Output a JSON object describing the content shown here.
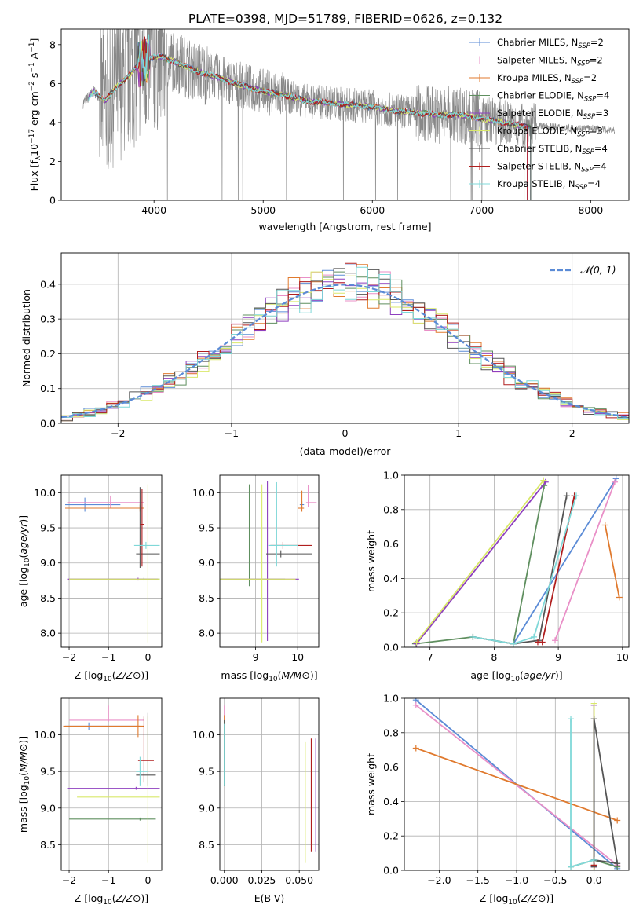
{
  "title": "PLATE=0398, MJD=51789, FIBERID=0626, z=0.132",
  "colors": {
    "Chabrier MILES": "#5b8bd6",
    "Salpeter MILES": "#e98fc7",
    "Kroupa MILES": "#e07a2e",
    "Chabrier ELODIE": "#5f8f5f",
    "Salpeter ELODIE": "#8e3fbf",
    "Kroupa ELODIE": "#d9e86a",
    "Chabrier STELIB": "#555555",
    "Salpeter STELIB": "#b01e1e",
    "Kroupa STELIB": "#7fd8d8",
    "data": "#888888",
    "normal": "#5b8bd6"
  },
  "legend_entries": [
    {
      "label": "Chabrier MILES, N",
      "sub": "SSP",
      "suffix": "=2"
    },
    {
      "label": "Salpeter MILES, N",
      "sub": "SSP",
      "suffix": "=2"
    },
    {
      "label": "Kroupa MILES, N",
      "sub": "SSP",
      "suffix": "=2"
    },
    {
      "label": "Chabrier ELODIE, N",
      "sub": "SSP",
      "suffix": "=4"
    },
    {
      "label": "Salpeter ELODIE, N",
      "sub": "SSP",
      "suffix": "=3"
    },
    {
      "label": "Kroupa ELODIE, N",
      "sub": "SSP",
      "suffix": "=3"
    },
    {
      "label": "Chabrier STELIB, N",
      "sub": "SSP",
      "suffix": "=4"
    },
    {
      "label": "Salpeter STELIB, N",
      "sub": "SSP",
      "suffix": "=4"
    },
    {
      "label": "Kroupa STELIB, N",
      "sub": "SSP",
      "suffix": "=4"
    }
  ],
  "chart_data": [
    {
      "id": "spectrum",
      "type": "line",
      "xlabel": "wavelength [Angstrom, rest frame]",
      "ylabel": "Flux [f_λ 10^-17 erg cm^-2 s^-1 A^-1]",
      "xlim": [
        3150,
        8350
      ],
      "ylim": [
        0,
        8.8
      ],
      "xticks": [
        4000,
        5000,
        6000,
        7000,
        8000
      ],
      "yticks": [
        0,
        2,
        4,
        6,
        8
      ],
      "continuum_x": [
        3350,
        3450,
        3550,
        3650,
        3750,
        3850,
        3950,
        4050,
        4200,
        4400,
        4600,
        4800,
        5000,
        5200,
        5400,
        5600,
        5800,
        6000,
        6200,
        6400,
        6600,
        6800,
        7000,
        7200,
        7400,
        7600,
        7800,
        8000,
        8200
      ],
      "continuum_y": [
        5.0,
        5.6,
        5.1,
        5.8,
        6.3,
        6.9,
        7.3,
        7.4,
        7.1,
        6.6,
        6.3,
        5.9,
        5.6,
        5.4,
        5.1,
        5.0,
        4.9,
        4.8,
        4.6,
        4.5,
        4.4,
        4.4,
        4.2,
        4.0,
        3.8,
        3.8,
        3.7,
        3.7,
        3.6
      ]
    },
    {
      "id": "residuals",
      "type": "histogram",
      "xlabel": "(data-model)/error",
      "ylabel": "Normed distribution",
      "xlim": [
        -2.5,
        2.5
      ],
      "ylim": [
        0,
        0.49
      ],
      "xticks": [
        -2,
        -1,
        0,
        1,
        2
      ],
      "yticks": [
        0.0,
        0.1,
        0.2,
        0.3,
        0.4
      ],
      "normal_label": "𝒩(0, 1)"
    },
    {
      "id": "age-vs-Z",
      "type": "errorbar",
      "xlabel": "Z [log10(Z/Z⊙)]",
      "ylabel": "age  [log10(age/yr)]",
      "xlim": [
        -2.2,
        0.35
      ],
      "ylim": [
        7.8,
        10.25
      ],
      "xticks": [
        -2,
        -1,
        0
      ],
      "yticks": [
        8.0,
        8.5,
        9.0,
        9.5,
        10.0
      ],
      "points": [
        {
          "model": "Chabrier MILES",
          "x": -1.6,
          "y": 9.83,
          "xerr": [
            0.5,
            0.9
          ],
          "yerr": [
            0.1,
            0.1
          ]
        },
        {
          "model": "Salpeter MILES",
          "x": -0.95,
          "y": 9.86,
          "xerr": [
            1.1,
            0.85
          ],
          "yerr": [
            0.08,
            0.1
          ]
        },
        {
          "model": "Kroupa MILES",
          "x": -0.2,
          "y": 9.78,
          "xerr": [
            1.9,
            0.1
          ],
          "yerr": [
            0.05,
            0.05
          ]
        },
        {
          "model": "Chabrier ELODIE",
          "x": -0.1,
          "y": 8.77,
          "xerr": [
            1.9,
            0.4
          ],
          "yerr": [
            0.02,
            0.02
          ]
        },
        {
          "model": "Salpeter ELODIE",
          "x": -0.25,
          "y": 8.77,
          "xerr": [
            1.8,
            0.5
          ],
          "yerr": [
            0.02,
            0.02
          ]
        },
        {
          "model": "Kroupa ELODIE",
          "x": 0.0,
          "y": 8.77,
          "xerr": [
            2.0,
            0.3
          ],
          "yerr": [
            0.9,
            1.35
          ]
        },
        {
          "model": "Chabrier STELIB",
          "x": -0.2,
          "y": 9.13,
          "xerr": [
            0.1,
            0.5
          ],
          "yerr": [
            0.2,
            0.95
          ]
        },
        {
          "model": "Salpeter STELIB",
          "x": -0.15,
          "y": 9.55,
          "xerr": [
            0.05,
            0.05
          ],
          "yerr": [
            0.6,
            0.5
          ]
        },
        {
          "model": "Kroupa STELIB",
          "x": -0.05,
          "y": 9.25,
          "xerr": [
            0.3,
            0.35
          ],
          "yerr": [
            0.05,
            0.05
          ]
        }
      ]
    },
    {
      "id": "age-vs-mass",
      "type": "errorbar",
      "xlabel": "mass [log10(M/M⊙)]",
      "ylabel": "",
      "xlim": [
        8.15,
        10.5
      ],
      "ylim": [
        7.8,
        10.25
      ],
      "xticks": [
        9,
        10
      ],
      "yticks": [
        8.0,
        8.5,
        9.0,
        9.5,
        10.0
      ],
      "points": [
        {
          "model": "Chabrier MILES",
          "x": 10.1,
          "y": 9.83,
          "xerr": [
            0.05,
            0.05
          ],
          "yerr": [
            0.05,
            0.05
          ]
        },
        {
          "model": "Salpeter MILES",
          "x": 10.25,
          "y": 9.86,
          "xerr": [
            0.05,
            0.2
          ],
          "yerr": [
            0.06,
            0.25
          ]
        },
        {
          "model": "Kroupa MILES",
          "x": 10.1,
          "y": 9.78,
          "xerr": [
            0.1,
            0.05
          ],
          "yerr": [
            0.05,
            0.25
          ]
        },
        {
          "model": "Chabrier ELODIE",
          "x": 8.85,
          "y": 8.77,
          "xerr": [
            0.7,
            0.85
          ],
          "yerr": [
            0.1,
            1.35
          ]
        },
        {
          "model": "Salpeter ELODIE",
          "x": 9.28,
          "y": 8.77,
          "xerr": [
            1.1,
            0.75
          ],
          "yerr": [
            0.88,
            1.4
          ]
        },
        {
          "model": "Kroupa ELODIE",
          "x": 9.15,
          "y": 8.77,
          "xerr": [
            1.0,
            0.8
          ],
          "yerr": [
            0.9,
            1.35
          ]
        },
        {
          "model": "Chabrier STELIB",
          "x": 9.6,
          "y": 9.13,
          "xerr": [
            0.35,
            0.75
          ],
          "yerr": [
            0.05,
            0.05
          ]
        },
        {
          "model": "Salpeter STELIB",
          "x": 9.65,
          "y": 9.25,
          "xerr": [
            0.3,
            0.7
          ],
          "yerr": [
            0.05,
            0.05
          ]
        },
        {
          "model": "Kroupa STELIB",
          "x": 9.5,
          "y": 9.25,
          "xerr": [
            0.2,
            0.5
          ],
          "yerr": [
            0.3,
            0.9
          ]
        }
      ]
    },
    {
      "id": "weight-vs-age",
      "type": "line",
      "xlabel": "age  [log10(age/yr)]",
      "ylabel": "mass weight",
      "xlim": [
        6.6,
        10.1
      ],
      "ylim": [
        0,
        1.0
      ],
      "xticks": [
        7,
        8,
        9,
        10
      ],
      "yticks": [
        0.0,
        0.2,
        0.4,
        0.6,
        0.8,
        1.0
      ],
      "series": [
        {
          "model": "Chabrier MILES",
          "x": [
            8.3,
            9.9
          ],
          "y": [
            0.02,
            0.98
          ]
        },
        {
          "model": "Salpeter MILES",
          "x": [
            8.95,
            9.88
          ],
          "y": [
            0.04,
            0.96
          ]
        },
        {
          "model": "Kroupa MILES",
          "x": [
            9.73,
            9.95
          ],
          "y": [
            0.71,
            0.29
          ]
        },
        {
          "model": "Chabrier ELODIE",
          "x": [
            6.77,
            7.67,
            8.3,
            8.78
          ],
          "y": [
            0.02,
            0.06,
            0.02,
            0.94
          ]
        },
        {
          "model": "Salpeter ELODIE",
          "x": [
            6.79,
            8.8
          ],
          "y": [
            0.02,
            0.96
          ]
        },
        {
          "model": "Kroupa ELODIE",
          "x": [
            6.79,
            8.77
          ],
          "y": [
            0.03,
            0.97
          ]
        },
        {
          "model": "Chabrier STELIB",
          "x": [
            7.67,
            8.3,
            8.7,
            9.13
          ],
          "y": [
            0.06,
            0.02,
            0.04,
            0.88
          ]
        },
        {
          "model": "Salpeter STELIB",
          "x": [
            8.68,
            8.75,
            9.25
          ],
          "y": [
            0.03,
            0.03,
            0.88
          ]
        },
        {
          "model": "Kroupa STELIB",
          "x": [
            7.67,
            8.3,
            8.62,
            9.28
          ],
          "y": [
            0.06,
            0.02,
            0.06,
            0.88
          ]
        }
      ]
    },
    {
      "id": "mass-vs-Z",
      "type": "errorbar",
      "xlabel": "Z [log10(Z/Z⊙)]",
      "ylabel": "mass [log10(M/M⊙)]",
      "xlim": [
        -2.2,
        0.35
      ],
      "ylim": [
        8.15,
        10.5
      ],
      "xticks": [
        -2,
        -1,
        0
      ],
      "yticks": [
        8.5,
        9.0,
        9.5,
        10.0
      ],
      "points": [
        {
          "model": "Chabrier MILES",
          "x": -1.5,
          "y": 10.12,
          "xerr": [
            0.6,
            1.3
          ],
          "yerr": [
            0.05,
            0.05
          ]
        },
        {
          "model": "Salpeter MILES",
          "x": -1.0,
          "y": 10.2,
          "xerr": [
            1.0,
            0.9
          ],
          "yerr": [
            0.02,
            0.2
          ]
        },
        {
          "model": "Kroupa MILES",
          "x": -0.25,
          "y": 10.12,
          "xerr": [
            1.9,
            0.15
          ],
          "yerr": [
            0.15,
            0.15
          ]
        },
        {
          "model": "Chabrier ELODIE",
          "x": -0.2,
          "y": 8.85,
          "xerr": [
            1.8,
            0.4
          ],
          "yerr": [
            0.02,
            0.02
          ]
        },
        {
          "model": "Salpeter ELODIE",
          "x": -0.3,
          "y": 9.27,
          "xerr": [
            1.75,
            0.6
          ],
          "yerr": [
            0.02,
            0.02
          ]
        },
        {
          "model": "Kroupa ELODIE",
          "x": 0.0,
          "y": 9.15,
          "xerr": [
            1.8,
            0.3
          ],
          "yerr": [
            0.9,
            1.1
          ]
        },
        {
          "model": "Chabrier STELIB",
          "x": 0.0,
          "y": 9.45,
          "xerr": [
            0.3,
            0.2
          ],
          "yerr": [
            0.15,
            0.85
          ]
        },
        {
          "model": "Salpeter STELIB",
          "x": -0.1,
          "y": 9.65,
          "xerr": [
            0.15,
            0.25
          ],
          "yerr": [
            0.3,
            0.6
          ]
        },
        {
          "model": "Kroupa STELIB",
          "x": -0.2,
          "y": 9.5,
          "xerr": [
            0.1,
            0.2
          ],
          "yerr": [
            0.2,
            0.2
          ]
        }
      ]
    },
    {
      "id": "mass-vs-ebv",
      "type": "errorbar",
      "xlabel": "E(B-V)",
      "ylabel": "",
      "xlim": [
        -0.003,
        0.063
      ],
      "ylim": [
        8.15,
        10.5
      ],
      "xticks": [
        0.0,
        0.025,
        0.05
      ],
      "xticklabels": [
        "0.000",
        "0.025",
        "0.050"
      ],
      "yticks": [
        8.5,
        9.0,
        9.5,
        10.0
      ],
      "points": [
        {
          "model": "Chabrier MILES",
          "x": 0.0,
          "y": 10.12,
          "xerr": [
            0,
            0
          ],
          "yerr": [
            0.05,
            0.05
          ]
        },
        {
          "model": "Salpeter MILES",
          "x": 0.0,
          "y": 10.2,
          "xerr": [
            0,
            0
          ],
          "yerr": [
            0.02,
            0.2
          ]
        },
        {
          "model": "Kroupa MILES",
          "x": 0.0,
          "y": 10.12,
          "xerr": [
            0,
            0
          ],
          "yerr": [
            0.15,
            0.15
          ]
        },
        {
          "model": "Chabrier ELODIE",
          "x": 0.0,
          "y": 9.7,
          "xerr": [
            0,
            0
          ],
          "yerr": [
            0.4,
            0.5
          ]
        },
        {
          "model": "Salpeter ELODIE",
          "x": 0.061,
          "y": 9.2,
          "xerr": [
            0,
            0
          ],
          "yerr": [
            0.8,
            0.75
          ]
        },
        {
          "model": "Kroupa ELODIE",
          "x": 0.054,
          "y": 9.15,
          "xerr": [
            0,
            0
          ],
          "yerr": [
            0.9,
            0.75
          ]
        },
        {
          "model": "Chabrier STELIB",
          "x": 0.0,
          "y": 9.7,
          "xerr": [
            0,
            0
          ],
          "yerr": [
            0.4,
            0.5
          ]
        },
        {
          "model": "Salpeter STELIB",
          "x": 0.058,
          "y": 9.2,
          "xerr": [
            0,
            0
          ],
          "yerr": [
            0.8,
            0.75
          ]
        },
        {
          "model": "Kroupa STELIB",
          "x": 0.0,
          "y": 9.7,
          "xerr": [
            0,
            0
          ],
          "yerr": [
            0.4,
            0.45
          ]
        }
      ]
    },
    {
      "id": "weight-vs-Z",
      "type": "line",
      "xlabel": "Z [log10(Z/Z⊙)]",
      "ylabel": "mass weight",
      "xlim": [
        -2.45,
        0.45
      ],
      "ylim": [
        0,
        1.0
      ],
      "xticks": [
        -2.0,
        -1.5,
        -1.0,
        -0.5,
        0.0
      ],
      "yticks": [
        0.0,
        0.2,
        0.4,
        0.6,
        0.8,
        1.0
      ],
      "series": [
        {
          "model": "Chabrier MILES",
          "x": [
            -2.3,
            0.3
          ],
          "y": [
            0.99,
            0.01
          ]
        },
        {
          "model": "Salpeter MILES",
          "x": [
            -2.3,
            0.3
          ],
          "y": [
            0.96,
            0.03
          ]
        },
        {
          "model": "Kroupa MILES",
          "x": [
            -2.3,
            0.3
          ],
          "y": [
            0.71,
            0.29
          ]
        },
        {
          "model": "Chabrier ELODIE",
          "x": [
            -0.3,
            0.0,
            0.3
          ],
          "y": [
            0.02,
            0.06,
            0.02
          ]
        },
        {
          "model": "Salpeter ELODIE",
          "x": [
            0.0,
            0.0,
            0.0
          ],
          "y": [
            0.02,
            0.96,
            0.02
          ]
        },
        {
          "model": "Kroupa ELODIE",
          "x": [
            0.0,
            0.0,
            0.0
          ],
          "y": [
            0.03,
            0.97,
            0.0
          ]
        },
        {
          "model": "Chabrier STELIB",
          "x": [
            0.0,
            0.0,
            0.3,
            0.0
          ],
          "y": [
            0.02,
            0.88,
            0.04,
            0.06
          ]
        },
        {
          "model": "Salpeter STELIB",
          "x": [
            0.0,
            0.0
          ],
          "y": [
            0.03,
            0.03
          ]
        },
        {
          "model": "Kroupa STELIB",
          "x": [
            -0.3,
            -0.3,
            0.0
          ],
          "y": [
            0.88,
            0.02,
            0.06
          ]
        }
      ]
    }
  ]
}
